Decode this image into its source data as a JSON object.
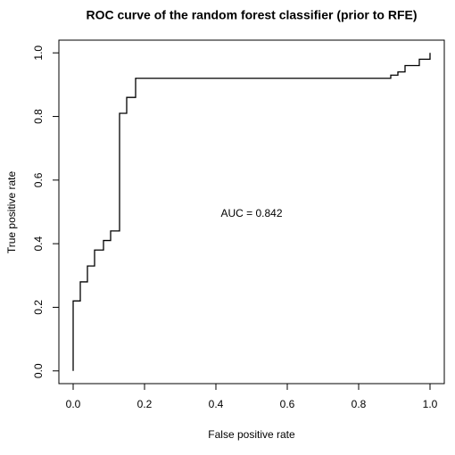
{
  "chart_data": {
    "type": "line",
    "title": "ROC curve of the random forest classifier (prior to RFE)",
    "x_label": "False positive rate",
    "y_label": "True positive rate",
    "annotation": "AUC = 0.842",
    "x": [
      0,
      0,
      0.02,
      0.02,
      0.04,
      0.04,
      0.06,
      0.06,
      0.085,
      0.085,
      0.105,
      0.105,
      0.13,
      0.13,
      0.15,
      0.15,
      0.175,
      0.175,
      0.89,
      0.89,
      0.91,
      0.91,
      0.93,
      0.93,
      0.97,
      0.97,
      1,
      1
    ],
    "series": [
      {
        "color": "#000000",
        "values": [
          0,
          0.22,
          0.22,
          0.28,
          0.28,
          0.33,
          0.33,
          0.38,
          0.38,
          0.41,
          0.41,
          0.44,
          0.44,
          0.81,
          0.81,
          0.86,
          0.86,
          0.92,
          0.92,
          0.93,
          0.93,
          0.94,
          0.94,
          0.96,
          0.96,
          0.98,
          0.98,
          1
        ]
      }
    ],
    "xlim": [
      -0.04,
      1.04
    ],
    "ylim": [
      -0.04,
      1.04
    ],
    "xticks": [
      {
        "value": 0,
        "label": "0.0"
      },
      0.2,
      0.4,
      0.6,
      0.8,
      {
        "value": 1,
        "label": "1.0"
      }
    ],
    "yticks": [
      {
        "value": 0,
        "label": "0.0"
      },
      0.2,
      0.4,
      0.6,
      0.8,
      {
        "value": 1,
        "label": "1.0"
      }
    ]
  }
}
